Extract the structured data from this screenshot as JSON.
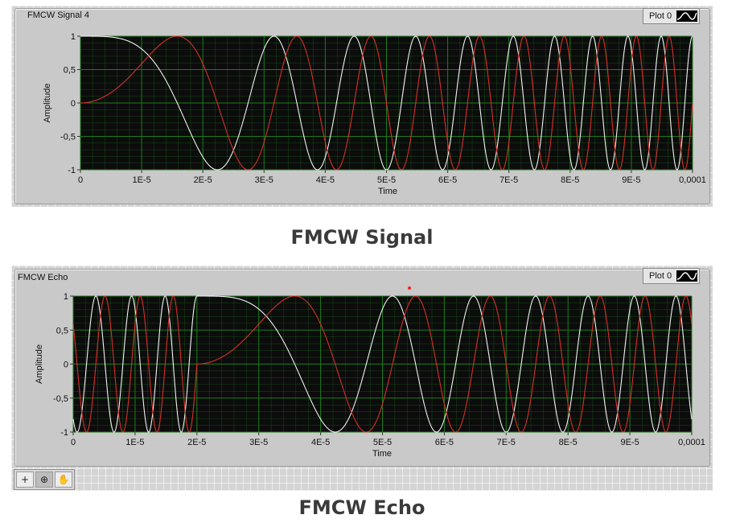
{
  "panels": [
    {
      "title": "FMCW Signal 4",
      "legend_label": "Plot 0",
      "caption": "FMCW Signal"
    },
    {
      "title": "FMCW Echo",
      "legend_label": "Plot 0",
      "caption": "FMCW Echo"
    }
  ],
  "toolbar": {
    "icons": [
      "crosshair-cursor-icon",
      "zoom-icon",
      "pan-hand-icon"
    ],
    "glyphs": [
      "+",
      "⊕",
      "✋"
    ]
  },
  "colors": {
    "plot_bg": "#0c0c0c",
    "grid": "#1f7a1f",
    "series_white": "#f4f4f4",
    "series_red": "#d9302a",
    "marker": "#ff2020"
  },
  "chart_data": [
    {
      "type": "line",
      "title": "FMCW Signal 4",
      "xlabel": "Time",
      "ylabel": "Amplitude",
      "xlim": [
        0,
        0.0001
      ],
      "ylim": [
        -1,
        1
      ],
      "x_ticks": [
        "0",
        "1E-5",
        "2E-5",
        "3E-5",
        "4E-5",
        "5E-5",
        "6E-5",
        "7E-5",
        "8E-5",
        "9E-5",
        "0,0001"
      ],
      "y_ticks": [
        "1",
        "0,5",
        "0",
        "-0,5",
        "-1"
      ],
      "grid": true,
      "legend": {
        "position": "top-right",
        "entries": [
          "Plot 0"
        ]
      },
      "chirp": {
        "sweep_start_s": 0,
        "sweep_end_s": 0.0001,
        "chirp_rate_hz_per_s": 2000000000
      },
      "series": [
        {
          "function": "cos",
          "color": "#f4f4f4"
        },
        {
          "function": "sin",
          "color": "#d9302a"
        }
      ]
    },
    {
      "type": "line",
      "title": "FMCW Echo",
      "xlabel": "Time",
      "ylabel": "Amplitude",
      "xlim": [
        0,
        0.0001
      ],
      "ylim": [
        -1,
        1
      ],
      "x_ticks": [
        "0",
        "1E-5",
        "2E-5",
        "3E-5",
        "4E-5",
        "5E-5",
        "6E-5",
        "7E-5",
        "8E-5",
        "9E-5",
        "0,0001"
      ],
      "y_ticks": [
        "1",
        "0,5",
        "0",
        "-0,5",
        "-1"
      ],
      "grid": true,
      "legend": {
        "position": "top-right",
        "entries": [
          "Plot 0"
        ]
      },
      "chirp": {
        "sweep_start_s": 2e-05,
        "sweep_end_s": 0.0001,
        "chirp_rate_hz_per_s": 2000000000
      },
      "series": [
        {
          "function": "cos",
          "color": "#f4f4f4"
        },
        {
          "function": "sin",
          "color": "#d9302a"
        }
      ]
    }
  ]
}
